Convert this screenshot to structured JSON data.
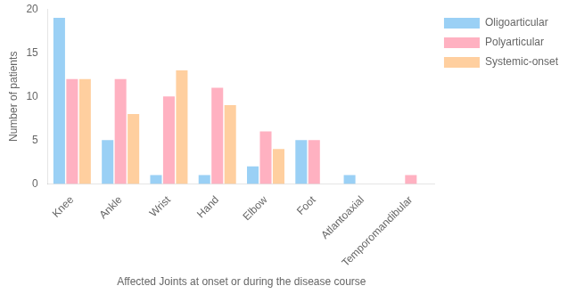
{
  "chart_data": {
    "type": "bar",
    "categories": [
      "Knee",
      "Ankle",
      "Wrist",
      "Hand",
      "Elbow",
      "Foot",
      "Atlantoaxial",
      "Temporomandibular"
    ],
    "series": [
      {
        "name": "Oligoarticular",
        "values": [
          19,
          5,
          1,
          1,
          2,
          5,
          1,
          0
        ]
      },
      {
        "name": "Polyarticular",
        "values": [
          12,
          12,
          10,
          11,
          6,
          5,
          0,
          1
        ]
      },
      {
        "name": "Systemic-onset",
        "values": [
          12,
          8,
          13,
          9,
          4,
          0,
          0,
          0
        ]
      }
    ],
    "ylabel": "Number of patients",
    "xlabel": "Affected Joints at onset or during the disease course",
    "ylim": [
      0,
      20
    ],
    "yticks": [
      0,
      5,
      10,
      15,
      20
    ],
    "grid": false,
    "legend": "right"
  }
}
